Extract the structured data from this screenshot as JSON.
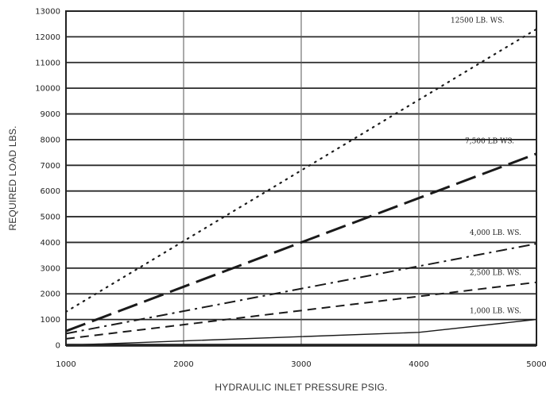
{
  "chart_data": {
    "type": "line",
    "title": "",
    "xlabel": "HYDRAULIC INLET PRESSURE PSIG.",
    "ylabel": "REQUIRED LOAD LBS.",
    "xlim": [
      1000,
      5000
    ],
    "ylim": [
      0,
      13000
    ],
    "x_ticks": [
      1000,
      2000,
      3000,
      4000,
      5000
    ],
    "y_ticks": [
      0,
      1000,
      2000,
      3000,
      4000,
      5000,
      6000,
      7000,
      8000,
      9000,
      10000,
      11000,
      12000,
      13000
    ],
    "grid": true,
    "legend": "none (series labeled inline at right end of lines)",
    "series": [
      {
        "name": "12500 LB. WS.",
        "style": "dotted",
        "x": [
          1000,
          5000
        ],
        "y": [
          1300,
          12300
        ]
      },
      {
        "name": "7,500 LB WS.",
        "style": "long-dash",
        "x": [
          1000,
          5000
        ],
        "y": [
          550,
          7450
        ]
      },
      {
        "name": "4,000 LB. WS.",
        "style": "dash-dot",
        "x": [
          1000,
          5000
        ],
        "y": [
          450,
          3950
        ]
      },
      {
        "name": "2,500 LB. WS.",
        "style": "dashed",
        "x": [
          1000,
          5000
        ],
        "y": [
          250,
          2450
        ]
      },
      {
        "name": "1,000 LB. WS.",
        "style": "solid",
        "x": [
          1000,
          4000,
          5000
        ],
        "y": [
          0,
          500,
          1000
        ]
      }
    ]
  }
}
